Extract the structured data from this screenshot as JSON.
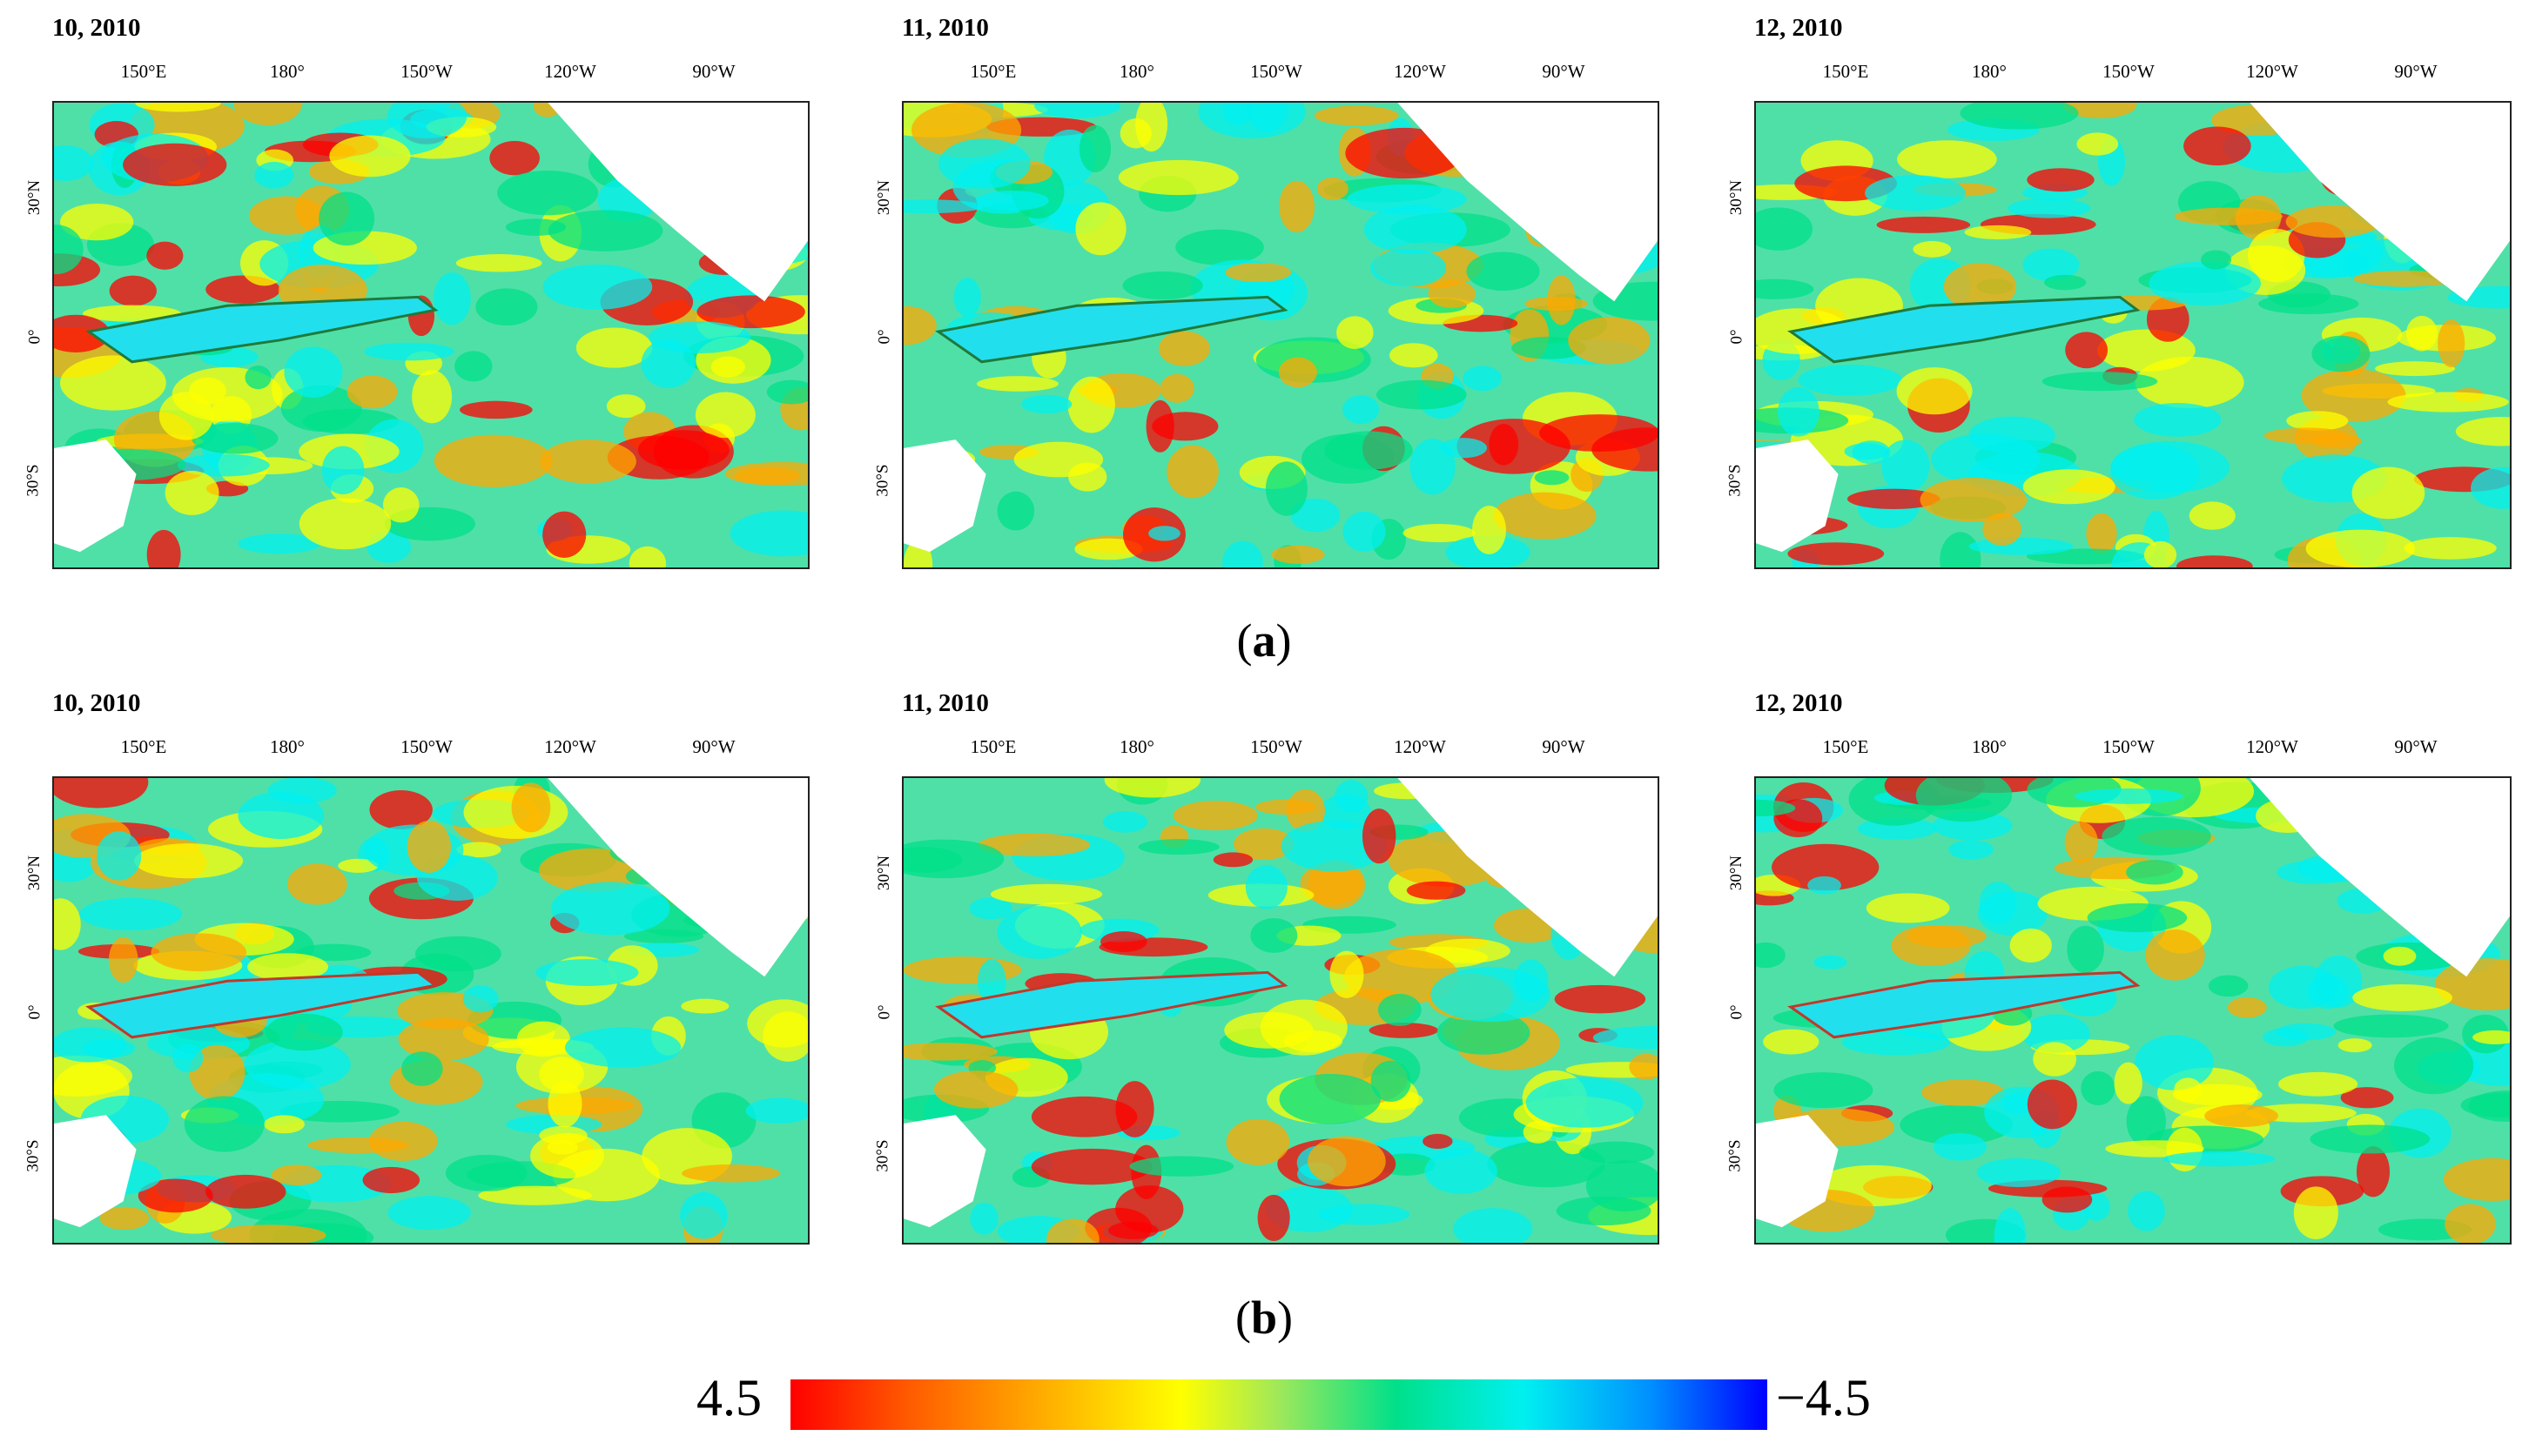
{
  "figure": {
    "label_a": "a",
    "label_b": "b",
    "colorbar": {
      "max_label": "4.5",
      "min_label": "−4.5",
      "colors": [
        "#ff0000",
        "#ffa800",
        "#ffff00",
        "#00e08a",
        "#00f0f0",
        "#0000ff"
      ]
    },
    "lon_ticks": [
      "150°E",
      "180°",
      "150°W",
      "120°W",
      "90°W"
    ],
    "lat_ticks": [
      "30°N",
      "0°",
      "30°S"
    ],
    "rows": [
      {
        "panels": [
          {
            "title": "10, 2010"
          },
          {
            "title": "11, 2010"
          },
          {
            "title": "12, 2010"
          }
        ]
      },
      {
        "panels": [
          {
            "title": "10, 2010"
          },
          {
            "title": "11, 2010"
          },
          {
            "title": "12, 2010"
          }
        ]
      }
    ]
  }
}
